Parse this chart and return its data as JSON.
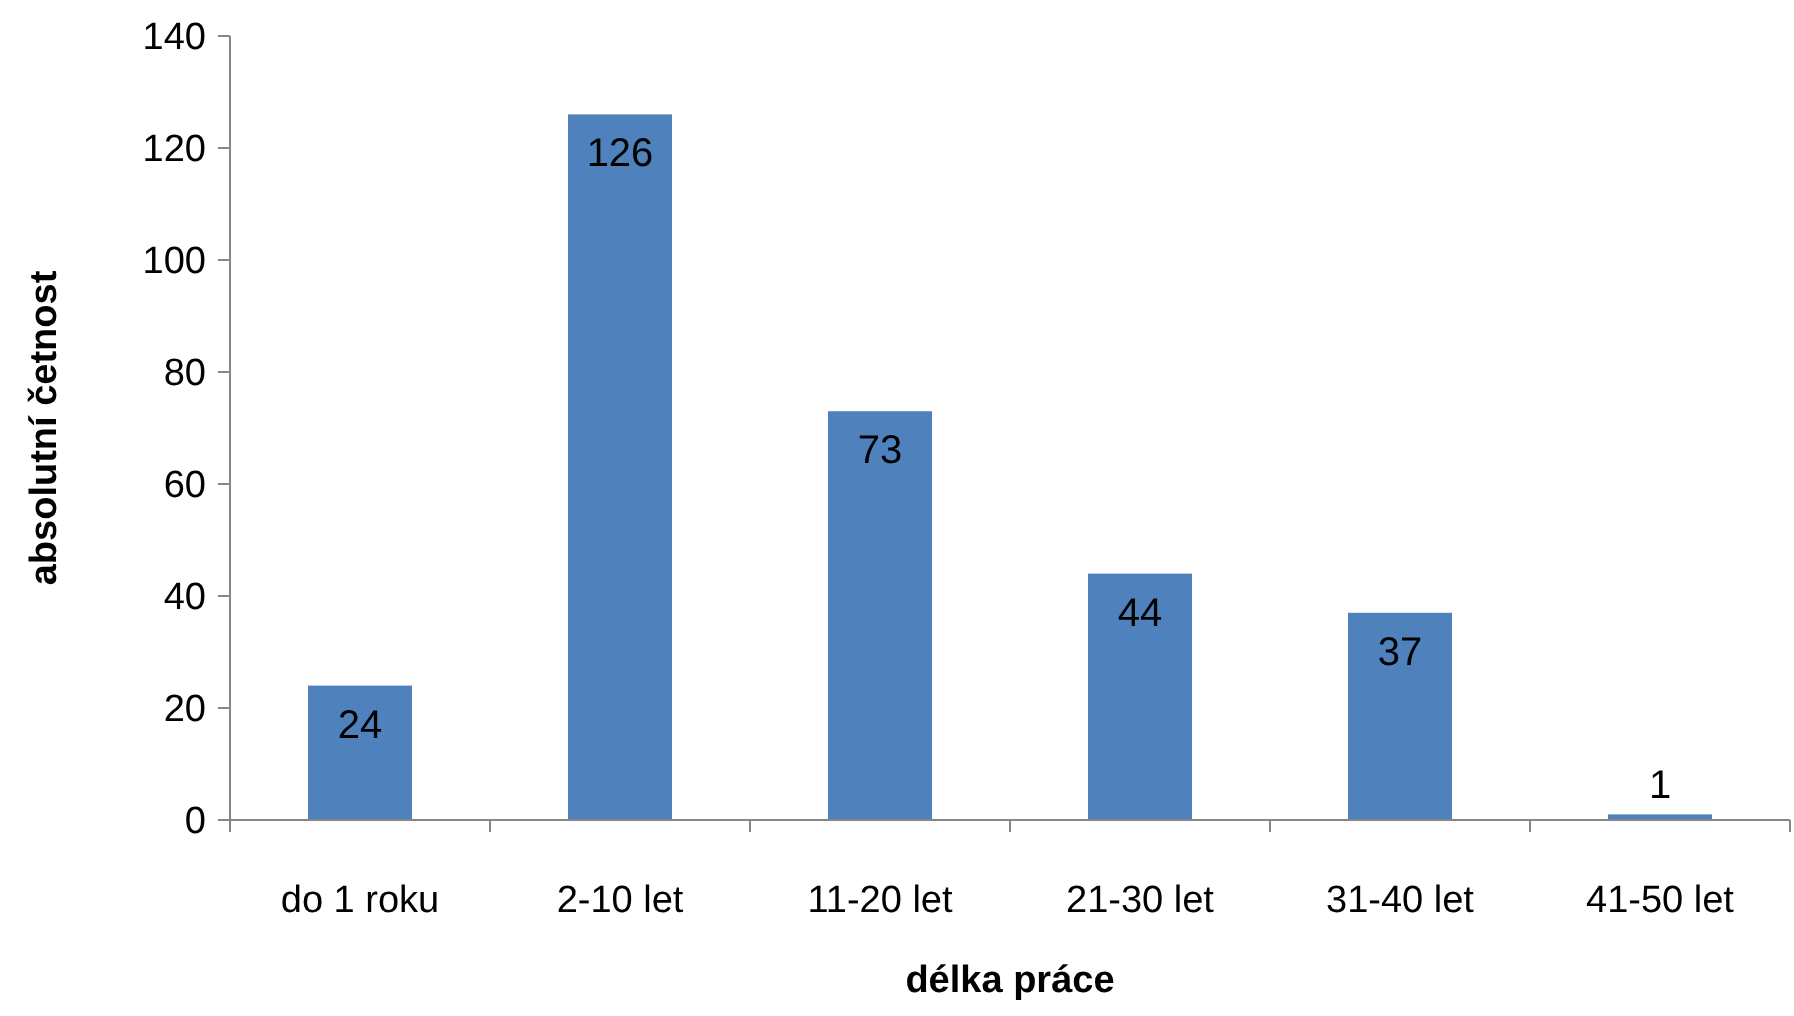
{
  "chart_data": {
    "type": "bar",
    "xlabel": "délka práce",
    "ylabel": "absolutní četnost",
    "categories": [
      "do 1 roku",
      "2-10 let",
      "11-20 let",
      "21-30 let",
      "31-40 let",
      "41-50 let"
    ],
    "values": [
      24,
      126,
      73,
      44,
      37,
      1
    ],
    "color": "#4f81bd",
    "data_labels": true,
    "grid": false,
    "ylim": [
      0,
      140
    ],
    "yticks": [
      0,
      20,
      40,
      60,
      80,
      100,
      120,
      140
    ]
  }
}
